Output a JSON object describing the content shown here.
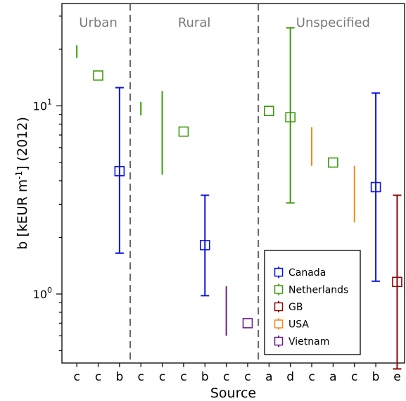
{
  "chart_data": {
    "type": "scatter",
    "xlabel": "Source",
    "ylabel_main": "b [kEUR m",
    "ylabel_sup": "-1",
    "ylabel_tail": "] (2012)",
    "yscale": "log",
    "ylim": [
      0.43,
      35
    ],
    "yticks": [
      {
        "value": 1,
        "base": "10",
        "exp": "0"
      },
      {
        "value": 10,
        "base": "10",
        "exp": "1"
      }
    ],
    "categories": [
      "c",
      "c",
      "b",
      "c",
      "c",
      "c",
      "b",
      "c",
      "c",
      "a",
      "d",
      "c",
      "a",
      "c",
      "b",
      "e"
    ],
    "groups": [
      {
        "label": "Urban",
        "start": 0,
        "end": 2
      },
      {
        "label": "Rural",
        "start": 3,
        "end": 8
      },
      {
        "label": "Unspecified",
        "start": 9,
        "end": 15
      }
    ],
    "series_colors": {
      "Canada": "#0a14e0",
      "Netherlands": "#3a9a0a",
      "GB": "#8c0a0a",
      "USA": "#f28a1a",
      "Vietnam": "#6a1e8a"
    },
    "points": [
      {
        "index": 0,
        "series": "Netherlands",
        "kind": "range",
        "low": 18.0,
        "high": 21.0
      },
      {
        "index": 1,
        "series": "Netherlands",
        "kind": "point",
        "value": 14.5
      },
      {
        "index": 2,
        "series": "Canada",
        "kind": "errorbar",
        "value": 4.5,
        "low": 1.65,
        "high": 12.5
      },
      {
        "index": 3,
        "series": "Netherlands",
        "kind": "range",
        "low": 8.9,
        "high": 10.5
      },
      {
        "index": 4,
        "series": "Netherlands",
        "kind": "range",
        "low": 4.3,
        "high": 12.0
      },
      {
        "index": 5,
        "series": "Netherlands",
        "kind": "point",
        "value": 7.3
      },
      {
        "index": 6,
        "series": "Canada",
        "kind": "errorbar",
        "value": 1.82,
        "low": 0.98,
        "high": 3.35
      },
      {
        "index": 7,
        "series": "Vietnam",
        "kind": "range",
        "low": 0.6,
        "high": 1.1
      },
      {
        "index": 8,
        "series": "Vietnam",
        "kind": "point",
        "value": 0.7
      },
      {
        "index": 9,
        "series": "Netherlands",
        "kind": "point",
        "value": 9.4
      },
      {
        "index": 10,
        "series": "Netherlands",
        "kind": "errorbar",
        "value": 8.7,
        "low": 3.05,
        "high": 26.0
      },
      {
        "index": 11,
        "series": "USA",
        "kind": "range",
        "low": 4.8,
        "high": 7.7
      },
      {
        "index": 12,
        "series": "Netherlands",
        "kind": "point",
        "value": 5.0
      },
      {
        "index": 13,
        "series": "USA",
        "kind": "range",
        "low": 2.4,
        "high": 4.8
      },
      {
        "index": 14,
        "series": "Canada",
        "kind": "errorbar",
        "value": 3.7,
        "low": 1.17,
        "high": 11.7
      },
      {
        "index": 15,
        "series": "GB",
        "kind": "errorbar",
        "value": 1.16,
        "low": 0.4,
        "high": 3.35
      }
    ],
    "legend": {
      "position": "lower-right",
      "entries": [
        "Canada",
        "Netherlands",
        "GB",
        "USA",
        "Vietnam"
      ]
    }
  }
}
